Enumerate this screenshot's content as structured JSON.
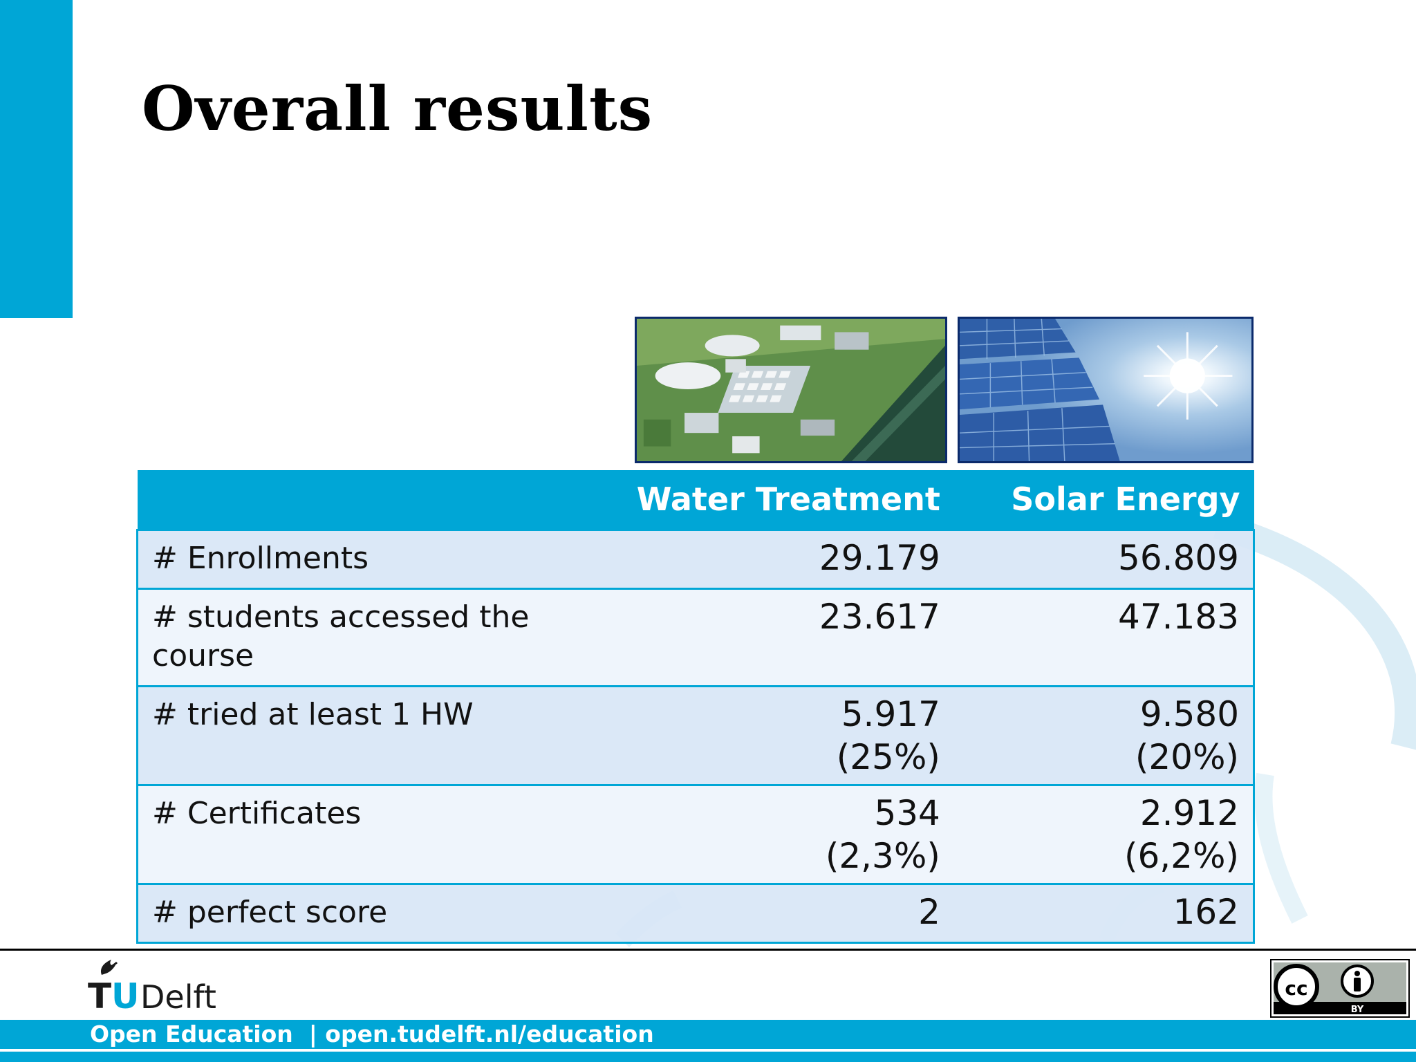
{
  "slide": {
    "title": "Overall results"
  },
  "table": {
    "headers": [
      "",
      "Water Treatment",
      "Solar Energy"
    ],
    "rows": [
      {
        "label": "# Enrollments",
        "water": [
          "29.179"
        ],
        "solar": [
          "56.809"
        ]
      },
      {
        "label": "# students accessed the course",
        "water": [
          "23.617"
        ],
        "solar": [
          "47.183"
        ]
      },
      {
        "label": "# tried at least 1 HW",
        "water": [
          "5.917",
          "(25%)"
        ],
        "solar": [
          "9.580",
          "(20%)"
        ]
      },
      {
        "label": "# Certificates",
        "water": [
          "534",
          "(2,3%)"
        ],
        "solar": [
          "2.912",
          "(6,2%)"
        ]
      },
      {
        "label": "# perfect score",
        "water": [
          "2"
        ],
        "solar": [
          "162"
        ]
      }
    ]
  },
  "footer": {
    "logo_text_t": "T",
    "logo_text_u": "U",
    "logo_text_delft": "Delft",
    "text": "Open Education  | open.tudelft.nl/education",
    "cc_label": "BY"
  },
  "colors": {
    "accent": "#00a6d6",
    "row_odd": "#d8e6f6",
    "row_even": "#eef4fc",
    "photo_border": "#0b2a6b"
  },
  "icons": [
    "tudelft-flame-icon",
    "creative-commons-icon",
    "attribution-person-icon"
  ]
}
